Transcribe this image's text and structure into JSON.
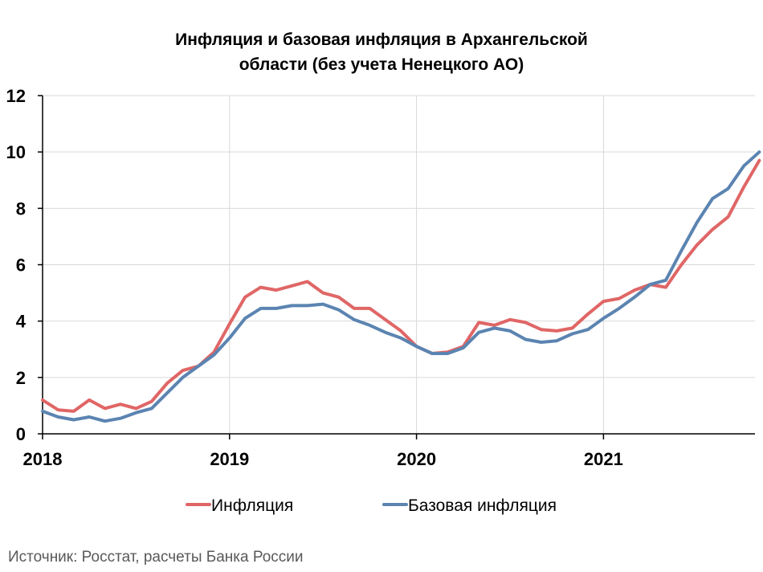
{
  "title_lines": [
    "Инфляция и базовая инфляция в Архангельской",
    "области (без учета Ненецкого АО)"
  ],
  "source": "Источник: Росстат, расчеты Банка России",
  "chart_data": {
    "type": "line",
    "x_start": "2018-01",
    "x_end": "2021-10",
    "x_ticks": [
      {
        "date": "2018-01",
        "label": "2018"
      },
      {
        "date": "2019-01",
        "label": "2019"
      },
      {
        "date": "2020-01",
        "label": "2020"
      },
      {
        "date": "2021-01",
        "label": "2021"
      }
    ],
    "ylim": [
      0,
      12
    ],
    "y_ticks": [
      0,
      2,
      4,
      6,
      8,
      10,
      12
    ],
    "grid": "vertical-at-years-and-horizontal",
    "legend_position": "bottom",
    "series": [
      {
        "name": "Инфляция",
        "color": "#E06666",
        "values": [
          1.2,
          0.85,
          0.8,
          1.2,
          0.9,
          1.05,
          0.9,
          1.15,
          1.8,
          2.25,
          2.4,
          2.9,
          3.9,
          4.85,
          5.2,
          5.1,
          5.25,
          5.4,
          5.0,
          4.85,
          4.45,
          4.45,
          4.05,
          3.65,
          3.1,
          2.85,
          2.9,
          3.1,
          3.95,
          3.85,
          4.05,
          3.95,
          3.7,
          3.65,
          3.75,
          4.25,
          4.7,
          4.8,
          5.1,
          5.3,
          5.2,
          6.0,
          6.7,
          7.25,
          7.7,
          8.75,
          9.7
        ]
      },
      {
        "name": "Базовая инфляция",
        "color": "#5B84B1",
        "values": [
          0.8,
          0.6,
          0.5,
          0.6,
          0.45,
          0.55,
          0.75,
          0.9,
          1.45,
          2.0,
          2.4,
          2.8,
          3.4,
          4.1,
          4.45,
          4.45,
          4.55,
          4.55,
          4.6,
          4.4,
          4.05,
          3.85,
          3.6,
          3.4,
          3.1,
          2.85,
          2.85,
          3.05,
          3.6,
          3.75,
          3.65,
          3.35,
          3.25,
          3.3,
          3.55,
          3.7,
          4.1,
          4.45,
          4.85,
          5.3,
          5.45,
          6.5,
          7.5,
          8.35,
          8.7,
          9.5,
          10.0
        ]
      }
    ]
  }
}
